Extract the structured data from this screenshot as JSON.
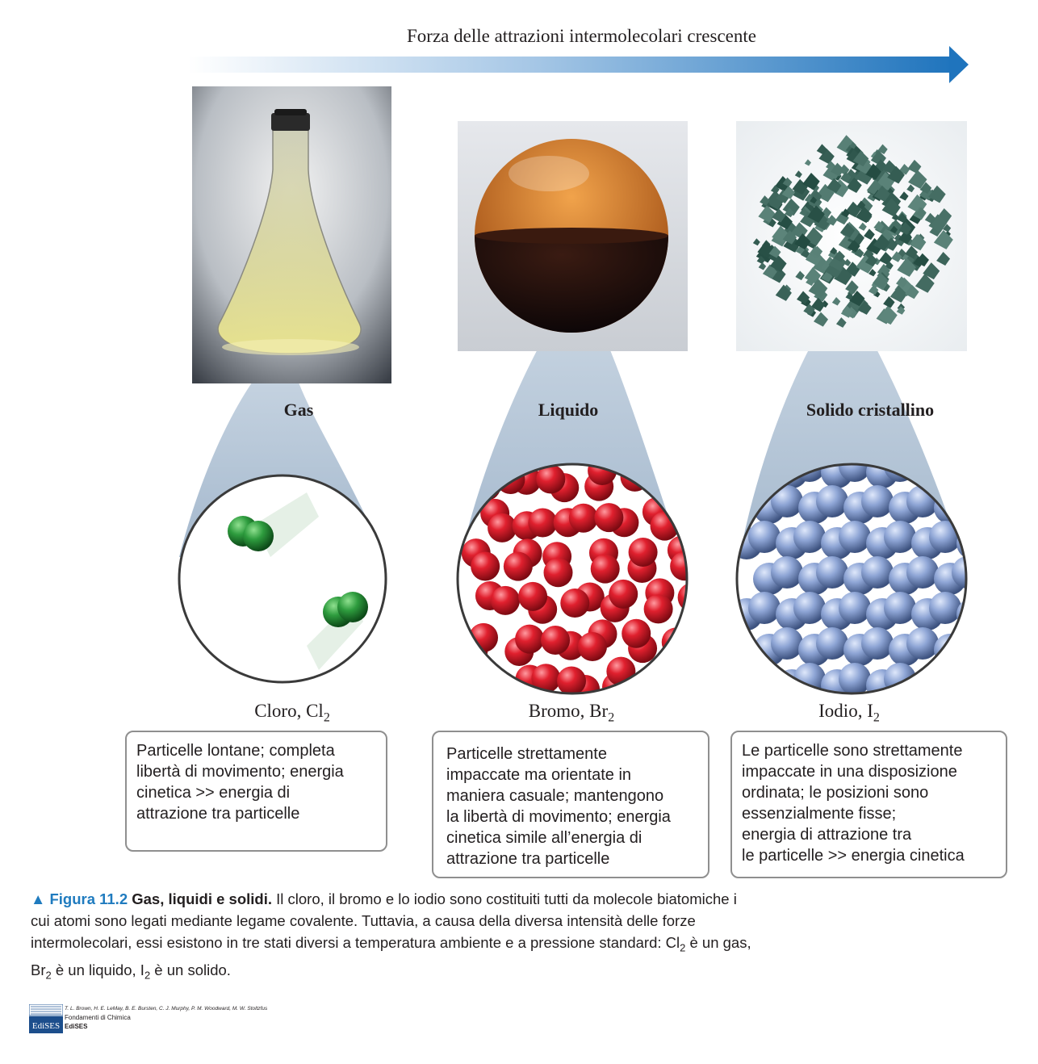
{
  "header": {
    "arrow_title": "Forza delle attrazioni intermolecolari crescente"
  },
  "columns": [
    {
      "state": "Gas",
      "substance_name": "Cloro, Cl",
      "substance_sub": "2",
      "description": [
        "Particelle lontane; completa",
        "libertà di movimento; energia",
        "cinetica >> energia di",
        "attrazione tra particelle"
      ]
    },
    {
      "state": "Liquido",
      "substance_name": "Bromo, Br",
      "substance_sub": "2",
      "description": [
        "Particelle strettamente",
        "impaccate ma orientate in",
        "maniera casuale; mantengono",
        "la libertà di movimento; energia",
        "cinetica simile all’energia di",
        "attrazione tra particelle"
      ]
    },
    {
      "state": "Solido cristallino",
      "substance_name": "Iodio, I",
      "substance_sub": "2",
      "description": [
        "Le particelle sono strettamente",
        "impaccate in una disposizione",
        "ordinata; le posizioni sono",
        "essenzialmente fisse;",
        "energia di attrazione tra",
        "le particelle >> energia cinetica"
      ]
    }
  ],
  "caption": {
    "marker": "▲",
    "figure_label": "Figura 11.2",
    "title": "Gas, liquidi e solidi.",
    "text_1": "Il cloro, il bromo e lo iodio sono costituiti tutti da molecole biatomiche i cui atomi sono legati mediante legame covalente. Tuttavia, a causa della diversa intensità delle forze intermolecolari, essi esistono in tre stati diversi a temperatura ambiente e a pressione standard: Cl",
    "sub_1": "2",
    "text_2": " è un gas, Br",
    "sub_2": "2",
    "text_3": " è un liquido, I",
    "sub_3": "2",
    "text_4": " è un solido."
  },
  "credits": {
    "authors": "T. L. Brown, H. E. LeMay, B. E. Bursten, C. J. Murphy, P. M. Woodward, M. W. Stoltzfus",
    "book": "Fondamenti di Chimica",
    "publisher": "EdiSES",
    "logo_text": "EdiSES"
  },
  "colors": {
    "arrow": "#1f74bd",
    "caption_accent": "#1f7bbf",
    "zoom_cone": "#b7c7d8",
    "chlorine": "#2e8b3c",
    "bromine": "#d4202f",
    "iodine": "#7f97c9"
  }
}
